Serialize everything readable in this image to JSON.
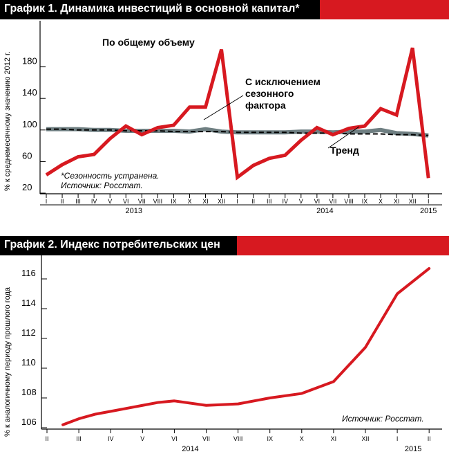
{
  "colors": {
    "accent_red": "#d71920",
    "title_black": "#000000",
    "trend_gray": "#6f7f82",
    "axis": "#000000"
  },
  "chart_data": [
    {
      "type": "line",
      "title": "График 1. Динамика инвестиций в основной капитал*",
      "ylabel": "% к среднемесячному значению 2012 г.",
      "ylim": [
        20,
        210
      ],
      "yticks": [
        20,
        60,
        100,
        140,
        180
      ],
      "x_tick_labels": [
        "I",
        "II",
        "III",
        "IV",
        "V",
        "VI",
        "VII",
        "VIII",
        "IX",
        "X",
        "XI",
        "XII",
        "I",
        "II",
        "III",
        "IV",
        "V",
        "VI",
        "VII",
        "VIII",
        "IX",
        "X",
        "XI",
        "XII",
        "I"
      ],
      "year_labels": [
        {
          "label": "2013",
          "at_index": 5.5
        },
        {
          "label": "2014",
          "at_index": 17.5
        },
        {
          "label": "2015",
          "at_index": 24
        }
      ],
      "series": [
        {
          "name": "По общему объему",
          "color": "#d71920",
          "style": "solid-thick",
          "values": [
            43,
            56,
            66,
            69,
            89,
            105,
            94,
            103,
            106,
            129,
            129,
            202,
            40,
            55,
            64,
            68,
            87,
            103,
            94,
            102,
            105,
            127,
            119,
            204,
            39
          ]
        },
        {
          "name": "С исключением сезонного фактора",
          "color": "#6f7f82",
          "style": "solid-band",
          "values": [
            101,
            101,
            101,
            100,
            100,
            99,
            99,
            99,
            99,
            98,
            101,
            98,
            97,
            97,
            97,
            97,
            98,
            98,
            97,
            98,
            98,
            100,
            96,
            95,
            93
          ]
        },
        {
          "name": "Тренд",
          "color": "#000000",
          "style": "dashed",
          "values": [
            101,
            101,
            100,
            100,
            100,
            99,
            99,
            99,
            98,
            98,
            98,
            98,
            97,
            97,
            97,
            97,
            96,
            96,
            96,
            95,
            95,
            95,
            94,
            94,
            93
          ]
        }
      ],
      "annotations": {
        "total_label": "По общему объему",
        "seasonal_label_1": "С исключением",
        "seasonal_label_2": "сезонного",
        "seasonal_label_3": "фактора",
        "trend_label": "Тренд",
        "note": "*Сезонность устранена.",
        "source": "Источник: Росстат."
      }
    },
    {
      "type": "line",
      "title": "График 2. Индекс потребительских цен",
      "ylabel": "% к аналогичному периоду прошлого года",
      "ylim": [
        105.8,
        117.3
      ],
      "yticks": [
        106,
        108,
        110,
        112,
        114,
        116
      ],
      "x_tick_labels": [
        "II",
        "III",
        "IV",
        "V",
        "VI",
        "VII",
        "VIII",
        "IX",
        "X",
        "XI",
        "XII",
        "I",
        "II"
      ],
      "year_labels": [
        {
          "label": "2014",
          "at_index": 4.5
        },
        {
          "label": "2015",
          "at_index": 11.5
        }
      ],
      "series": [
        {
          "color": "#d71920",
          "values": [
            106.2,
            106.6,
            106.9,
            107.1,
            107.3,
            107.5,
            107.7,
            107.8,
            107.5,
            107.6,
            108.0,
            108.3,
            109.1,
            111.4,
            115.0,
            116.7
          ]
        }
      ],
      "x_positions": [
        0.5,
        1.0,
        1.5,
        2.0,
        2.5,
        3.0,
        3.5,
        4.0,
        5.0,
        6.0,
        7.0,
        8.0,
        9.0,
        10.0,
        11.0,
        12.0
      ],
      "annotations": {
        "source": "Источник: Росстат."
      }
    }
  ]
}
